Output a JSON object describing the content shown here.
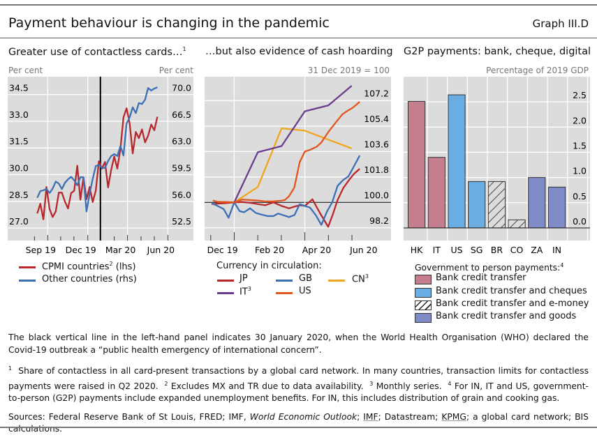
{
  "header": {
    "title": "Payment behaviour is changing in the pandemic",
    "graph_number": "Graph III.D"
  },
  "colors": {
    "cpmi": "#b8272c",
    "other": "#3b6fb6",
    "jp": "#b8272c",
    "gb": "#3b6fb6",
    "cn": "#f2a51c",
    "it": "#6b3b8e",
    "us": "#e0561c",
    "bank_credit_transfer": "#c47e8d",
    "cheques": "#69ade2",
    "emoney": "#dcdcdc",
    "goods": "#7f8bc6",
    "plot_bg": "#dcdcdc"
  },
  "chart_data": [
    {
      "type": "line",
      "title": "Greater use of contactless cards…",
      "title_sup": "1",
      "ylabel_left": "Per cent",
      "ylabel_right": "Per cent",
      "x_unit": "weeks",
      "xlim": [
        -9.6,
        50.7
      ],
      "ylim_left": [
        26.3,
        35.5
      ],
      "ylim_right": [
        50.9,
        71.9
      ],
      "yticks_left": [
        "27.0",
        "28.5",
        "30.0",
        "31.5",
        "33.0",
        "34.5"
      ],
      "yticks_right": [
        "52.5",
        "56.0",
        "59.5",
        "63.0",
        "66.5",
        "70.0"
      ],
      "xticks": [
        {
          "label": "Sep 19",
          "x": 3.4
        },
        {
          "label": "Dec 19",
          "x": 16.4
        },
        {
          "label": "Mar 20",
          "x": 29.3
        },
        {
          "label": "Jun 20",
          "x": 42.4
        }
      ],
      "month_ticks": [
        -0.9,
        3.4,
        7.6,
        11.9,
        16.4,
        20.5,
        25.0,
        29.3,
        33.7,
        38.0,
        42.4
      ],
      "vline": {
        "x": 20.5,
        "meaning": "30 January 2020"
      },
      "series": [
        {
          "name": "CPMI countries",
          "sup": "2",
          "suffix": " (lhs)",
          "axis": "left",
          "key": "cpmi",
          "values": [
            27.82,
            28.37,
            27.49,
            29.31,
            28.07,
            27.62,
            27.93,
            28.99,
            28.99,
            28.48,
            28.1,
            28.96,
            29.1,
            30.5,
            28.59,
            29.83,
            28.62,
            29.31,
            28.46,
            29.1,
            30.75,
            30.34,
            30.71,
            29.28,
            30.27,
            31.02,
            30.34,
            31.46,
            33.22,
            33.73,
            32.88,
            31.19,
            32.4,
            32.05,
            32.54,
            31.81,
            32.19,
            32.81,
            32.49,
            33.25
          ]
        },
        {
          "name": "Other countries",
          "sup": "",
          "suffix": " (rhs)",
          "axis": "right",
          "key": "other",
          "values": [
            56.38,
            57.24,
            57.34,
            57.5,
            56.99,
            57.56,
            58.46,
            58.2,
            57.5,
            58.3,
            58.75,
            59.07,
            58.62,
            57.98,
            59.01,
            59.01,
            54.62,
            56.92,
            58.78,
            60.45,
            60.61,
            60.19,
            60.22,
            61.09,
            61.73,
            61.99,
            61.73,
            63.01,
            61.79,
            65.9,
            66.7,
            67.98,
            67.24,
            68.53,
            68.4,
            68.94,
            70.45,
            70.13,
            70.38,
            70.54
          ]
        }
      ]
    },
    {
      "type": "line",
      "title": "…but also evidence of cash hoarding",
      "ylabel_right": "31 Dec 2019 = 100",
      "x_unit": "months from 31 Dec 2019",
      "xlim": [
        -1.26,
        6.66
      ],
      "ylim": [
        97.3,
        108.9
      ],
      "yticks": [
        "98.2",
        "100.0",
        "101.8",
        "103.6",
        "105.4",
        "107.2"
      ],
      "xticks": [
        {
          "label": "Dec 19",
          "x": -0.5
        },
        {
          "label": "Feb 20",
          "x": 1.5
        },
        {
          "label": "Apr 20",
          "x": 3.5
        },
        {
          "label": "Jun 20",
          "x": 5.5
        }
      ],
      "month_ticks": [
        -1,
        0,
        1,
        2,
        3,
        4,
        5
      ],
      "legend_title": "Currency in circulation:",
      "series": [
        {
          "name": "JP",
          "sup": "",
          "key": "jp",
          "x": [
            -0.96,
            -0.66,
            -0.36,
            0,
            0.33,
            0.67,
            1,
            1.32,
            1.66,
            2.01,
            2.33,
            2.56,
            2.78,
            3,
            3.32,
            3.64,
            3.99,
            4.19,
            4.39,
            4.63,
            4.88,
            5.08,
            5.33
          ],
          "values": [
            99.88,
            99.92,
            99.95,
            100,
            100.03,
            99.97,
            99.88,
            99.8,
            100,
            99.75,
            99.58,
            99.7,
            99.8,
            99.75,
            100.22,
            99.25,
            98.27,
            99.16,
            100.17,
            101.01,
            101.59,
            102.01,
            102.38
          ]
        },
        {
          "name": "GB",
          "sup": "",
          "key": "gb",
          "x": [
            -0.96,
            -0.71,
            -0.45,
            -0.24,
            0,
            0.23,
            0.42,
            0.67,
            0.92,
            1.17,
            1.42,
            1.66,
            1.86,
            2.11,
            2.33,
            2.56,
            2.78,
            3,
            3.22,
            3.47,
            3.7,
            3.94,
            4.16,
            4.39,
            4.63,
            4.85,
            5.1,
            5.33
          ],
          "values": [
            99.95,
            99.75,
            99.53,
            98.91,
            100,
            99.38,
            99.3,
            99.58,
            99.25,
            99.13,
            99.03,
            99.03,
            99.21,
            99.08,
            98.96,
            99.11,
            99.87,
            99.75,
            99.63,
            99.08,
            98.41,
            99.36,
            100,
            101.17,
            101.59,
            101.84,
            102.6,
            103.32
          ]
        },
        {
          "name": "CN",
          "sup": "3",
          "key": "cn",
          "x": [
            0,
            1,
            2.01,
            3,
            4,
            4.99
          ],
          "values": [
            100,
            101.09,
            105.24,
            105.08,
            104.44,
            103.82
          ]
        },
        {
          "name": "IT",
          "sup": "3",
          "key": "it",
          "x": [
            0,
            1,
            2.01,
            3,
            4,
            4.99
          ],
          "values": [
            100,
            103.55,
            103.99,
            106.45,
            106.87,
            108.26
          ]
        },
        {
          "name": "US",
          "sup": "",
          "key": "us",
          "x": [
            -0.91,
            -0.66,
            -0.36,
            0,
            0.33,
            0.67,
            1,
            1.32,
            1.61,
            2.01,
            2.15,
            2.32,
            2.55,
            2.78,
            3,
            3.22,
            3.5,
            3.7,
            4,
            4.29,
            4.59,
            4.78,
            5.03,
            5.33
          ],
          "values": [
            100.13,
            100.03,
            100.03,
            100,
            100.2,
            100.17,
            100.13,
            100.07,
            100.07,
            100.12,
            100.17,
            100.42,
            101.04,
            102.85,
            103.6,
            103.72,
            103.94,
            104.24,
            104.99,
            105.61,
            106.23,
            106.45,
            106.7,
            107.12
          ]
        }
      ]
    },
    {
      "type": "bar",
      "title": "G2P payments: bank, cheque, digital",
      "ylabel_right": "Percentage of 2019 GDP",
      "ylim": [
        -0.25,
        3.0
      ],
      "yticks": [
        "0.0",
        "0.5",
        "1.0",
        "1.5",
        "2.0",
        "2.5"
      ],
      "categories": [
        "HK",
        "IT",
        "US",
        "SG",
        "BR",
        "CO",
        "ZA",
        "IN"
      ],
      "values": [
        2.51,
        1.4,
        2.64,
        0.92,
        0.92,
        0.16,
        1.0,
        0.81
      ],
      "groups": [
        "bank_credit_transfer",
        "bank_credit_transfer",
        "cheques",
        "cheques",
        "emoney",
        "emoney",
        "goods",
        "goods"
      ],
      "legend_title": "Government to person payments:",
      "legend_title_sup": "4",
      "legend": [
        {
          "key": "bank_credit_transfer",
          "label": "Bank credit transfer"
        },
        {
          "key": "cheques",
          "label": "Bank credit transfer and cheques"
        },
        {
          "key": "emoney",
          "label": "Bank credit transfer and e-money"
        },
        {
          "key": "goods",
          "label": "Bank credit transfer and goods"
        }
      ]
    }
  ],
  "notes": {
    "vline_note": "The black vertical line in the left-hand panel indicates 30 January 2020, when the World Health Organisation (WHO) declared the Covid-19 outbreak a “public health emergency of international concern”.",
    "fn1": "Share of contactless in all card-present transactions by a global card network. In many countries, transaction limits for contactless payments were raised in Q2 2020.",
    "fn2": "Excludes MX and TR due to data availability.",
    "fn3": "Monthly series.",
    "fn4": "For IN, IT and US, government-to-person (G2P) payments include expanded unemployment benefits. For IN, this includes distribution of grain and cooking gas.",
    "sources_a": "Sources: Federal Reserve Bank of St Louis, FRED; IMF, ",
    "sources_weo": "World Economic Outlook",
    "sources_b": "; ",
    "sources_imf": "IMF",
    "sources_c": "; Datastream; ",
    "sources_kpmg": "KPMG",
    "sources_d": "; a global card network; BIS calculations."
  }
}
